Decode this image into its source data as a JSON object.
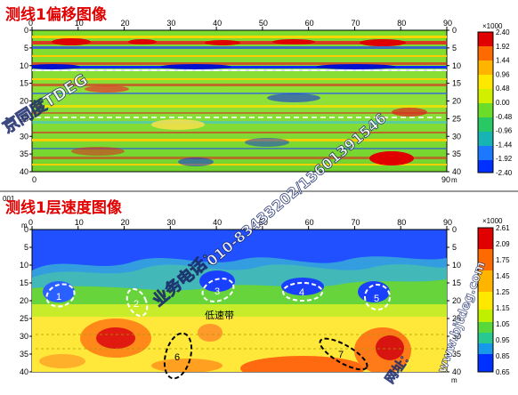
{
  "survey_line": {
    "migration_panel": {
      "title": "测线1偏移图像",
      "x_ticks": [
        "0",
        "10",
        "20",
        "30",
        "40",
        "50",
        "60",
        "70",
        "80",
        "90"
      ],
      "x_unit": "m",
      "y_ticks": [
        "0",
        "5",
        "10",
        "15",
        "20",
        "25",
        "30",
        "35",
        "40"
      ],
      "colorbar_multiplier": "×1000",
      "colorbar_labels": [
        "2.40",
        "1.92",
        "1.44",
        "0.96",
        "0.48",
        "0.00",
        "-0.48",
        "-0.96",
        "-1.44",
        "-1.92",
        "-2.40"
      ]
    },
    "velocity_panel": {
      "badge": "001",
      "title": "测线1层速度图像",
      "x_ticks": [
        "0",
        "10",
        "20",
        "30",
        "40",
        "50",
        "60",
        "70",
        "80",
        "90"
      ],
      "x_unit": "m",
      "y_ticks": [
        "0",
        "5",
        "10",
        "15",
        "20",
        "25",
        "30",
        "35",
        "40"
      ],
      "y_unit": "m",
      "colorbar_multiplier": "×1000",
      "colorbar_labels": [
        "2.61",
        "2.09",
        "1.75",
        "1.45",
        "1.25",
        "1.15",
        "1.05",
        "0.95",
        "0.85",
        "0.65"
      ],
      "annotation_low_velocity": "低速带",
      "anomaly_labels": [
        "1",
        "2",
        "3",
        "4",
        "5",
        "6",
        "7"
      ]
    }
  },
  "watermarks": {
    "company": "京同度TDEG",
    "phone_prefix": "业务电话：",
    "phone": "010-83433202/13601391546",
    "website_prefix": "网址：",
    "website": "www.bjtdeg.com"
  },
  "colors": {
    "title_red": "#e00000",
    "scale_high": "#e00000",
    "scale_low": "#0030ff"
  }
}
